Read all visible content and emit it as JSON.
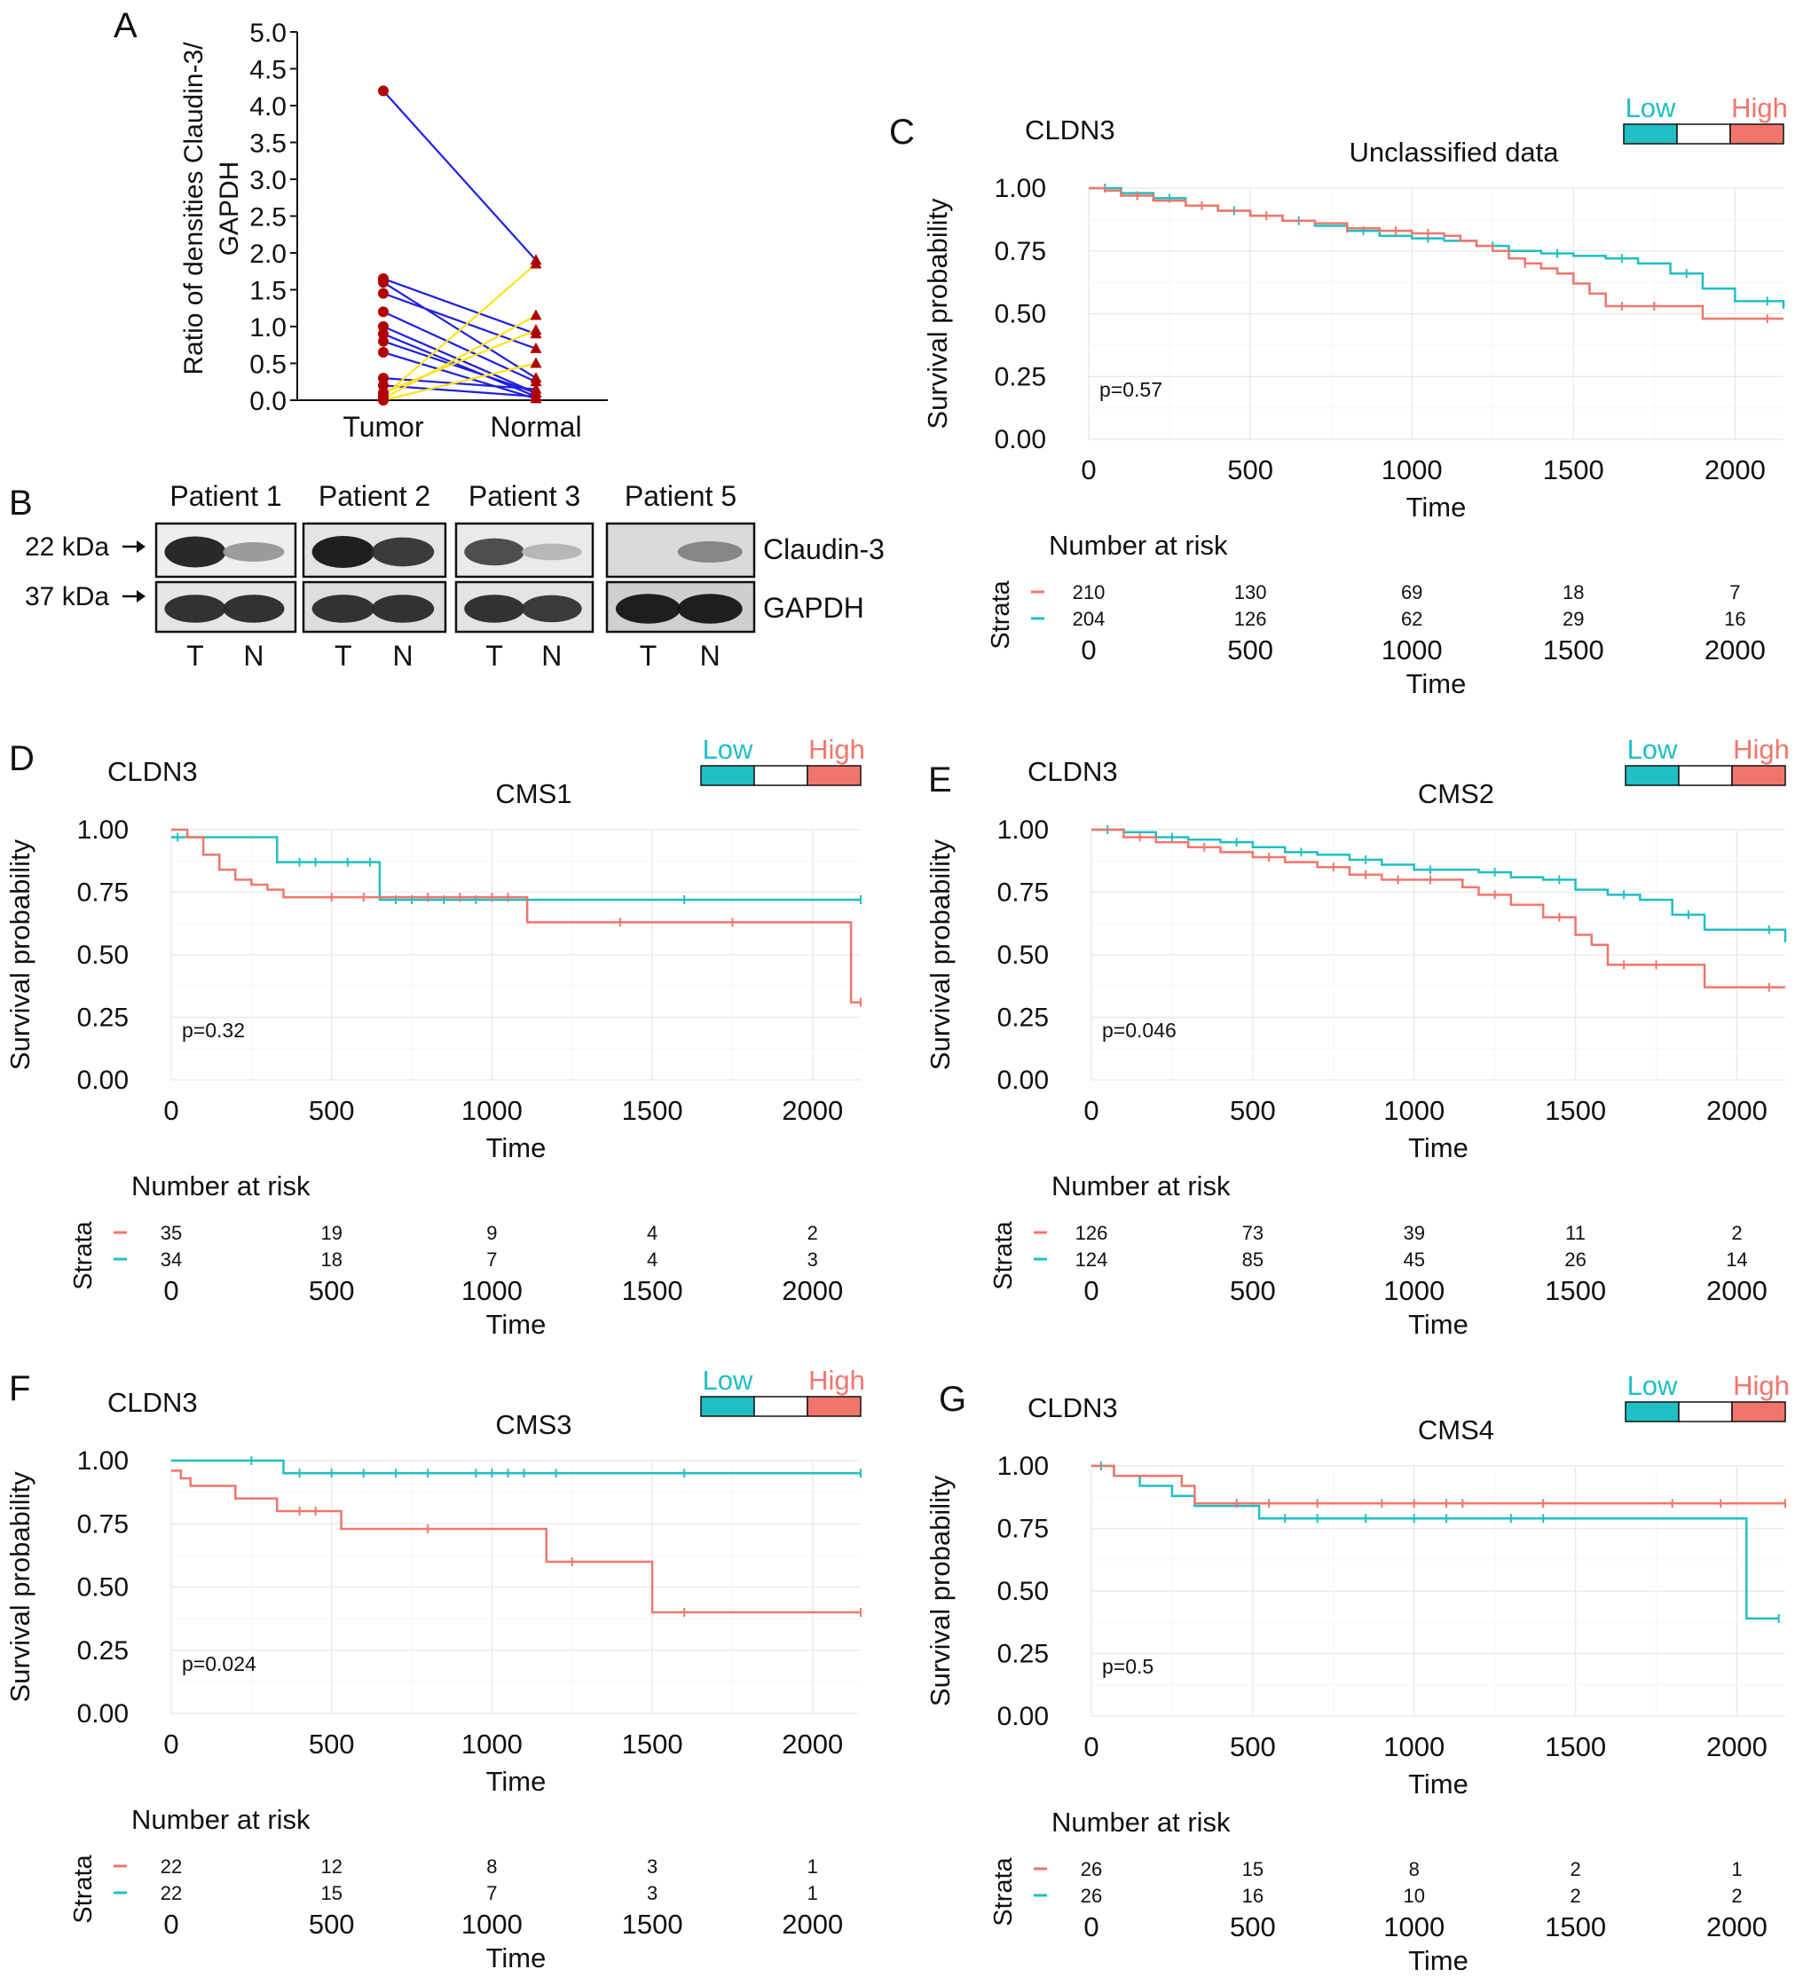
{
  "colors": {
    "low": "#1fbfc4",
    "high": "#f0766c",
    "tumor_marker": "#b00000",
    "line_blue": "#1f1fe0",
    "line_yellow": "#ffe21a",
    "grid": "#ebebeb"
  },
  "panel_a": {
    "letter": "A",
    "ylabel_line1": "Ratio of densities Claudin-3/",
    "ylabel_line2": "GAPDH",
    "yticks": [
      "5.0",
      "4.5",
      "4.0",
      "3.5",
      "3.0",
      "2.5",
      "2.0",
      "1.5",
      "1.0",
      "0.5",
      "0.0"
    ],
    "xlabels": [
      "Tumor",
      "Normal"
    ]
  },
  "panel_b": {
    "letter": "B",
    "patients": [
      "Patient 1",
      "Patient 2",
      "Patient 3",
      "Patient 5"
    ],
    "markers": [
      "22 kDa",
      "37 kDa"
    ],
    "bands": [
      "Claudin-3",
      "GAPDH"
    ],
    "lane_labels": [
      "T",
      "N"
    ]
  },
  "chart_data": [
    {
      "type": "line",
      "panel": "A",
      "title": "",
      "ylabel": "Ratio of densities Claudin-3/ GAPDH",
      "categories": [
        "Tumor",
        "Normal"
      ],
      "ylim": [
        0,
        5
      ],
      "series": [
        {
          "name": "pair1",
          "color": "blue",
          "values": [
            4.2,
            1.9
          ]
        },
        {
          "name": "pair2",
          "color": "blue",
          "values": [
            1.65,
            0.9
          ]
        },
        {
          "name": "pair3",
          "color": "blue",
          "values": [
            1.6,
            0.3
          ]
        },
        {
          "name": "pair4",
          "color": "blue",
          "values": [
            1.45,
            0.7
          ]
        },
        {
          "name": "pair5",
          "color": "blue",
          "values": [
            1.2,
            0.25
          ]
        },
        {
          "name": "pair6",
          "color": "blue",
          "values": [
            1.0,
            0.1
          ]
        },
        {
          "name": "pair7",
          "color": "blue",
          "values": [
            0.9,
            0.05
          ]
        },
        {
          "name": "pair8",
          "color": "blue",
          "values": [
            0.8,
            0.1
          ]
        },
        {
          "name": "pair9",
          "color": "blue",
          "values": [
            0.65,
            0.02
          ]
        },
        {
          "name": "pair10",
          "color": "blue",
          "values": [
            0.3,
            0.15
          ]
        },
        {
          "name": "pair11",
          "color": "blue",
          "values": [
            0.2,
            0.05
          ]
        },
        {
          "name": "pair12",
          "color": "yellow",
          "values": [
            0.05,
            1.85
          ]
        },
        {
          "name": "pair13",
          "color": "yellow",
          "values": [
            0.02,
            1.15
          ]
        },
        {
          "name": "pair14",
          "color": "yellow",
          "values": [
            0.1,
            0.95
          ]
        },
        {
          "name": "pair15",
          "color": "yellow",
          "values": [
            0.0,
            0.5
          ]
        }
      ]
    },
    {
      "type": "survival",
      "panel": "C",
      "gene": "CLDN3",
      "title": "Unclassified data",
      "legend": [
        "Low",
        "High"
      ],
      "xlabel": "Time",
      "ylabel": "Survival probability",
      "xlim": [
        0,
        2150
      ],
      "ylim": [
        0,
        1
      ],
      "xticks": [
        0,
        500,
        1000,
        1500,
        2000
      ],
      "yticks": [
        "0.00",
        "0.25",
        "0.50",
        "0.75",
        "1.00"
      ],
      "pvalue": "p=0.57",
      "risk_title": "Number at risk",
      "strata_label": "Strata",
      "risk_high": [
        "210",
        "130",
        "69",
        "18",
        "7"
      ],
      "risk_low": [
        "204",
        "126",
        "62",
        "29",
        "16"
      ],
      "high": {
        "t": [
          0,
          50,
          100,
          200,
          300,
          400,
          500,
          600,
          700,
          800,
          900,
          1000,
          1100,
          1150,
          1200,
          1250,
          1300,
          1350,
          1400,
          1450,
          1500,
          1550,
          1600,
          1700,
          1800,
          1900,
          2000,
          2150
        ],
        "s": [
          1.0,
          0.99,
          0.97,
          0.95,
          0.93,
          0.91,
          0.89,
          0.87,
          0.86,
          0.84,
          0.83,
          0.82,
          0.81,
          0.79,
          0.77,
          0.75,
          0.72,
          0.7,
          0.68,
          0.66,
          0.62,
          0.58,
          0.53,
          0.53,
          0.53,
          0.48,
          0.48,
          0.48
        ],
        "censor": [
          150,
          350,
          550,
          800,
          950,
          1050,
          1350,
          1650,
          1750,
          2100
        ]
      },
      "low": {
        "t": [
          0,
          100,
          200,
          300,
          400,
          500,
          600,
          700,
          800,
          900,
          1000,
          1100,
          1200,
          1300,
          1400,
          1500,
          1600,
          1700,
          1800,
          1900,
          2000,
          2150
        ],
        "s": [
          1.0,
          0.98,
          0.96,
          0.93,
          0.91,
          0.89,
          0.87,
          0.85,
          0.83,
          0.81,
          0.8,
          0.79,
          0.77,
          0.75,
          0.74,
          0.73,
          0.72,
          0.7,
          0.66,
          0.6,
          0.55,
          0.52
        ],
        "censor": [
          50,
          250,
          450,
          650,
          850,
          1050,
          1250,
          1450,
          1650,
          1850,
          2100
        ]
      }
    },
    {
      "type": "survival",
      "panel": "D",
      "gene": "CLDN3",
      "title": "CMS1",
      "legend": [
        "Low",
        "High"
      ],
      "xlabel": "Time",
      "ylabel": "Survival probability",
      "xlim": [
        0,
        2150
      ],
      "ylim": [
        0,
        1
      ],
      "xticks": [
        0,
        500,
        1000,
        1500,
        2000
      ],
      "yticks": [
        "0.00",
        "0.25",
        "0.50",
        "0.75",
        "1.00"
      ],
      "pvalue": "p=0.32",
      "risk_title": "Number at risk",
      "strata_label": "Strata",
      "risk_high": [
        "35",
        "19",
        "9",
        "4",
        "2"
      ],
      "risk_low": [
        "34",
        "18",
        "7",
        "4",
        "3"
      ],
      "high": {
        "t": [
          0,
          50,
          100,
          150,
          200,
          250,
          300,
          350,
          650,
          1110,
          2120,
          2150
        ],
        "s": [
          1.0,
          0.97,
          0.9,
          0.84,
          0.8,
          0.78,
          0.76,
          0.73,
          0.73,
          0.63,
          0.31,
          0.31
        ],
        "censor": [
          500,
          600,
          800,
          900,
          1000,
          1050,
          1400,
          1750,
          2150
        ]
      },
      "low": {
        "t": [
          0,
          300,
          330,
          650,
          1110,
          2150
        ],
        "s": [
          0.97,
          0.97,
          0.87,
          0.72,
          0.72,
          0.72
        ],
        "censor": [
          20,
          400,
          450,
          550,
          620,
          700,
          750,
          850,
          950,
          1600,
          2150
        ]
      }
    },
    {
      "type": "survival",
      "panel": "E",
      "gene": "CLDN3",
      "title": "CMS2",
      "legend": [
        "Low",
        "High"
      ],
      "xlabel": "Time",
      "ylabel": "Survival probability",
      "xlim": [
        0,
        2150
      ],
      "ylim": [
        0,
        1
      ],
      "xticks": [
        0,
        500,
        1000,
        1500,
        2000
      ],
      "yticks": [
        "0.00",
        "0.25",
        "0.50",
        "0.75",
        "1.00"
      ],
      "pvalue": "p=0.046",
      "risk_title": "Number at risk",
      "strata_label": "Strata",
      "risk_high": [
        "126",
        "73",
        "39",
        "11",
        "2"
      ],
      "risk_low": [
        "124",
        "85",
        "45",
        "26",
        "14"
      ],
      "high": {
        "t": [
          0,
          100,
          200,
          300,
          400,
          500,
          600,
          700,
          800,
          900,
          1000,
          1100,
          1150,
          1200,
          1300,
          1400,
          1500,
          1550,
          1600,
          1900,
          2150
        ],
        "s": [
          1.0,
          0.97,
          0.95,
          0.93,
          0.91,
          0.89,
          0.87,
          0.85,
          0.82,
          0.8,
          0.8,
          0.8,
          0.77,
          0.74,
          0.7,
          0.65,
          0.58,
          0.54,
          0.46,
          0.37,
          0.37
        ],
        "censor": [
          150,
          350,
          550,
          750,
          850,
          950,
          1050,
          1250,
          1450,
          1650,
          1750,
          2100
        ]
      },
      "low": {
        "t": [
          0,
          100,
          200,
          300,
          400,
          500,
          600,
          700,
          800,
          900,
          1000,
          1100,
          1200,
          1300,
          1400,
          1500,
          1600,
          1700,
          1800,
          1900,
          2000,
          2150
        ],
        "s": [
          1.0,
          0.99,
          0.97,
          0.96,
          0.95,
          0.93,
          0.91,
          0.9,
          0.88,
          0.86,
          0.84,
          0.84,
          0.83,
          0.81,
          0.8,
          0.76,
          0.74,
          0.72,
          0.66,
          0.6,
          0.6,
          0.55
        ],
        "censor": [
          50,
          250,
          450,
          650,
          850,
          1050,
          1250,
          1450,
          1650,
          1850,
          2100
        ]
      }
    },
    {
      "type": "survival",
      "panel": "F",
      "gene": "CLDN3",
      "title": "CMS3",
      "legend": [
        "Low",
        "High"
      ],
      "xlabel": "Time",
      "ylabel": "Survival probability",
      "xlim": [
        0,
        2150
      ],
      "ylim": [
        0,
        1
      ],
      "xticks": [
        0,
        500,
        1000,
        1500,
        2000
      ],
      "yticks": [
        "0.00",
        "0.25",
        "0.50",
        "0.75",
        "1.00"
      ],
      "pvalue": "p=0.024",
      "risk_title": "Number at risk",
      "strata_label": "Strata",
      "risk_high": [
        "22",
        "12",
        "8",
        "3",
        "1"
      ],
      "risk_low": [
        "22",
        "15",
        "7",
        "3",
        "1"
      ],
      "high": {
        "t": [
          0,
          30,
          60,
          200,
          330,
          530,
          1170,
          1500,
          2150
        ],
        "s": [
          0.96,
          0.93,
          0.9,
          0.85,
          0.8,
          0.73,
          0.6,
          0.4,
          0.4
        ],
        "censor": [
          400,
          450,
          800,
          1250,
          1600,
          2150
        ]
      },
      "low": {
        "t": [
          0,
          350,
          2150
        ],
        "s": [
          1.0,
          0.95,
          0.95
        ],
        "censor": [
          250,
          400,
          500,
          600,
          700,
          800,
          950,
          1000,
          1050,
          1100,
          1200,
          1600,
          2150
        ]
      }
    },
    {
      "type": "survival",
      "panel": "G",
      "gene": "CLDN3",
      "title": "CMS4",
      "legend": [
        "Low",
        "High"
      ],
      "xlabel": "Time",
      "ylabel": "Survival probability",
      "xlim": [
        0,
        2150
      ],
      "ylim": [
        0,
        1
      ],
      "xticks": [
        0,
        500,
        1000,
        1500,
        2000
      ],
      "yticks": [
        "0.00",
        "0.25",
        "0.50",
        "0.75",
        "1.00"
      ],
      "pvalue": "p=0.5",
      "risk_title": "Number at risk",
      "strata_label": "Strata",
      "risk_high": [
        "26",
        "15",
        "8",
        "2",
        "1"
      ],
      "risk_low": [
        "26",
        "16",
        "10",
        "2",
        "2"
      ],
      "high": {
        "t": [
          0,
          70,
          280,
          320,
          2150
        ],
        "s": [
          1.0,
          0.96,
          0.92,
          0.85,
          0.85
        ],
        "censor": [
          450,
          550,
          700,
          900,
          1000,
          1100,
          1150,
          1400,
          1800,
          1950,
          2150
        ]
      },
      "low": {
        "t": [
          0,
          70,
          150,
          250,
          320,
          520,
          2030,
          2130
        ],
        "s": [
          1.0,
          0.96,
          0.92,
          0.88,
          0.84,
          0.79,
          0.39,
          0.39
        ],
        "censor": [
          30,
          600,
          700,
          850,
          1000,
          1100,
          1300,
          1400,
          2130
        ]
      }
    }
  ]
}
